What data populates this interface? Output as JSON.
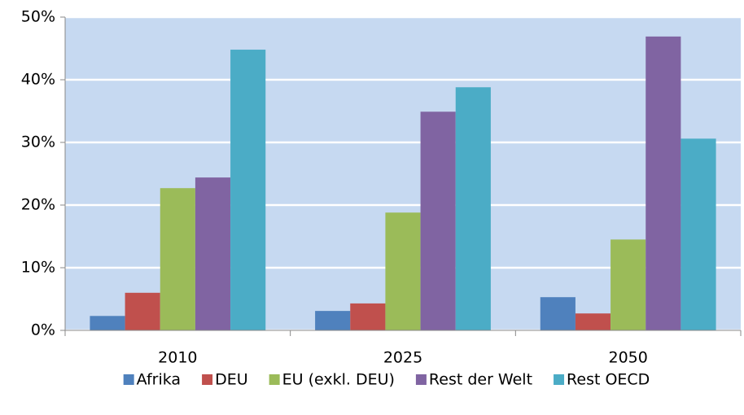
{
  "chart_data": {
    "type": "bar",
    "categories": [
      "2010",
      "2025",
      "2050"
    ],
    "series": [
      {
        "name": "Afrika",
        "color": "#4f81bd",
        "values": [
          2.3,
          3.1,
          5.3
        ]
      },
      {
        "name": "DEU",
        "color": "#c0504d",
        "values": [
          6.0,
          4.3,
          2.7
        ]
      },
      {
        "name": "EU (exkl. DEU)",
        "color": "#9bbb59",
        "values": [
          22.7,
          18.8,
          14.5
        ]
      },
      {
        "name": "Rest der Welt",
        "color": "#8064a2",
        "values": [
          24.4,
          34.9,
          46.9
        ]
      },
      {
        "name": "Rest OECD",
        "color": "#4bacc6",
        "values": [
          44.8,
          38.8,
          30.6
        ]
      }
    ],
    "ylim": [
      0,
      50
    ],
    "yticks": [
      {
        "value": 0,
        "label": "0%"
      },
      {
        "value": 10,
        "label": "10%"
      },
      {
        "value": 20,
        "label": "20%"
      },
      {
        "value": 30,
        "label": "30%"
      },
      {
        "value": 40,
        "label": "40%"
      },
      {
        "value": 50,
        "label": "50%"
      }
    ],
    "grid": true,
    "legend": "bottom"
  }
}
